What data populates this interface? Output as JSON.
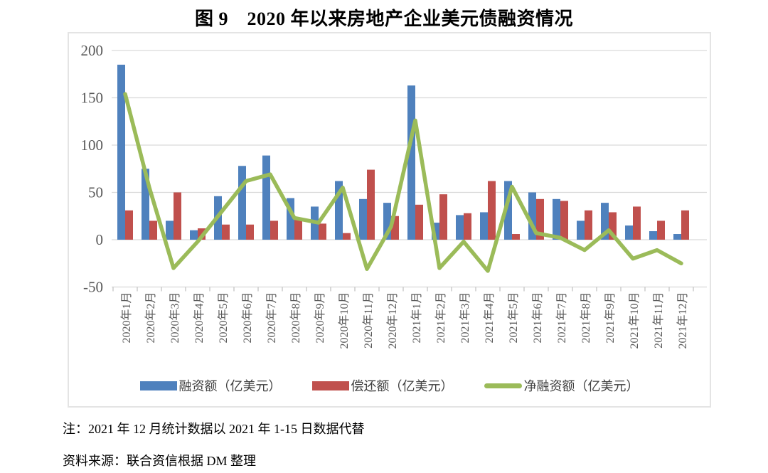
{
  "title": "图 9　2020 年以来房地产企业美元债融资情况",
  "chart_data": {
    "type": "bar",
    "subtype": "grouped bars with overlaid line (combo chart)",
    "title": "图 9　2020 年以来房地产企业美元债融资情况",
    "xlabel": "",
    "ylabel": "",
    "ylim": [
      -50,
      200
    ],
    "yticks": [
      200,
      150,
      100,
      50,
      0,
      -50
    ],
    "grid": true,
    "legend_position": "bottom",
    "categories": [
      "2020年1月",
      "2020年2月",
      "2020年3月",
      "2020年4月",
      "2020年5月",
      "2020年6月",
      "2020年7月",
      "2020年8月",
      "2020年9月",
      "2020年10月",
      "2020年11月",
      "2020年12月",
      "2021年1月",
      "2021年2月",
      "2021年3月",
      "2021年4月",
      "2021年5月",
      "2021年6月",
      "2021年7月",
      "2021年8月",
      "2021年9月",
      "2021年10月",
      "2021年11月",
      "2021年12月"
    ],
    "series": [
      {
        "name": "融资额（亿美元）",
        "type": "bar",
        "color": "#4F81BD",
        "values": [
          185,
          75,
          20,
          10,
          46,
          78,
          89,
          44,
          35,
          62,
          43,
          39,
          163,
          18,
          26,
          29,
          62,
          50,
          43,
          20,
          39,
          15,
          9,
          6
        ]
      },
      {
        "name": "偿还额（亿美元）",
        "type": "bar",
        "color": "#C0504D",
        "values": [
          31,
          20,
          50,
          12,
          16,
          16,
          20,
          21,
          17,
          7,
          74,
          25,
          37,
          48,
          28,
          62,
          6,
          43,
          41,
          31,
          29,
          35,
          20,
          31
        ]
      },
      {
        "name": "净融资额（亿美元）",
        "type": "line",
        "color": "#9BBB59",
        "values": [
          154,
          55,
          -30,
          -2,
          30,
          62,
          69,
          23,
          18,
          55,
          -31,
          14,
          126,
          -30,
          -2,
          -33,
          56,
          7,
          2,
          -11,
          10,
          -20,
          -11,
          -25
        ]
      }
    ],
    "colors": {
      "gridline": "#D9D9D9",
      "axis_text": "#595959",
      "frame_border": "#E4E4E4",
      "tick": "#BFBFBF"
    }
  },
  "notes": {
    "note": "注：2021 年 12 月统计数据以 2021 年 1-15 日数据代替",
    "source": "资料来源：联合资信根据 DM 整理"
  }
}
